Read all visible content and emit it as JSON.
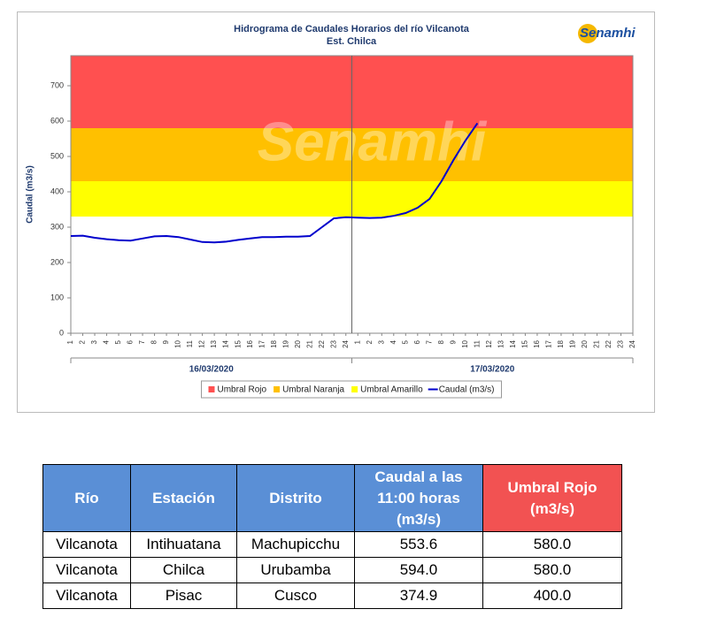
{
  "chart_data": {
    "type": "line",
    "title": "Hidrograma de Caudales Horarios del río Vilcanota",
    "subtitle": "Est. Chilca",
    "y_label": "Caudal (m3/s)",
    "logo": "Senamhi",
    "ylim": [
      0,
      785
    ],
    "yticks": [
      0,
      100,
      200,
      300,
      400,
      500,
      600,
      700
    ],
    "categories": [
      "1",
      "2",
      "3",
      "4",
      "5",
      "6",
      "7",
      "8",
      "9",
      "10",
      "11",
      "12",
      "13",
      "14",
      "15",
      "16",
      "17",
      "18",
      "19",
      "20",
      "21",
      "22",
      "23",
      "24",
      "1",
      "2",
      "3",
      "4",
      "5",
      "6",
      "7",
      "8",
      "9",
      "10",
      "11",
      "12",
      "13",
      "14",
      "15",
      "16",
      "17",
      "18",
      "19",
      "20",
      "21",
      "22",
      "23",
      "24"
    ],
    "groups": [
      "16/03/2020",
      "17/03/2020"
    ],
    "thresholds": [
      {
        "name": "Umbral Rojo",
        "color": "#ff5050",
        "value": 580
      },
      {
        "name": "Umbral Naranja",
        "color": "#ffc000",
        "value": 430
      },
      {
        "name": "Umbral Amarillo",
        "color": "#ffff00",
        "value": 330
      }
    ],
    "series": [
      {
        "name": "Caudal (m3/s)",
        "color": "#0000cc",
        "values": [
          275,
          276,
          270,
          266,
          263,
          262,
          268,
          274,
          275,
          272,
          265,
          258,
          257,
          259,
          264,
          268,
          272,
          272,
          273,
          273,
          275,
          300,
          325,
          328,
          327,
          326,
          327,
          332,
          340,
          355,
          380,
          430,
          490,
          545,
          594,
          null,
          null,
          null,
          null,
          null,
          null,
          null,
          null,
          null,
          null,
          null,
          null,
          null
        ]
      }
    ]
  },
  "table": {
    "header": [
      "Río",
      "Estación",
      "Distrito",
      "Caudal a las 11:00 horas (m3/s)",
      "Umbral Rojo (m3/s)"
    ],
    "rows": [
      [
        "Vilcanota",
        "Intihuatana",
        "Machupicchu",
        "553.6",
        "580.0"
      ],
      [
        "Vilcanota",
        "Chilca",
        "Urubamba",
        "594.0",
        "580.0"
      ],
      [
        "Vilcanota",
        "Pisac",
        "Cusco",
        "374.9",
        "400.0"
      ]
    ]
  }
}
